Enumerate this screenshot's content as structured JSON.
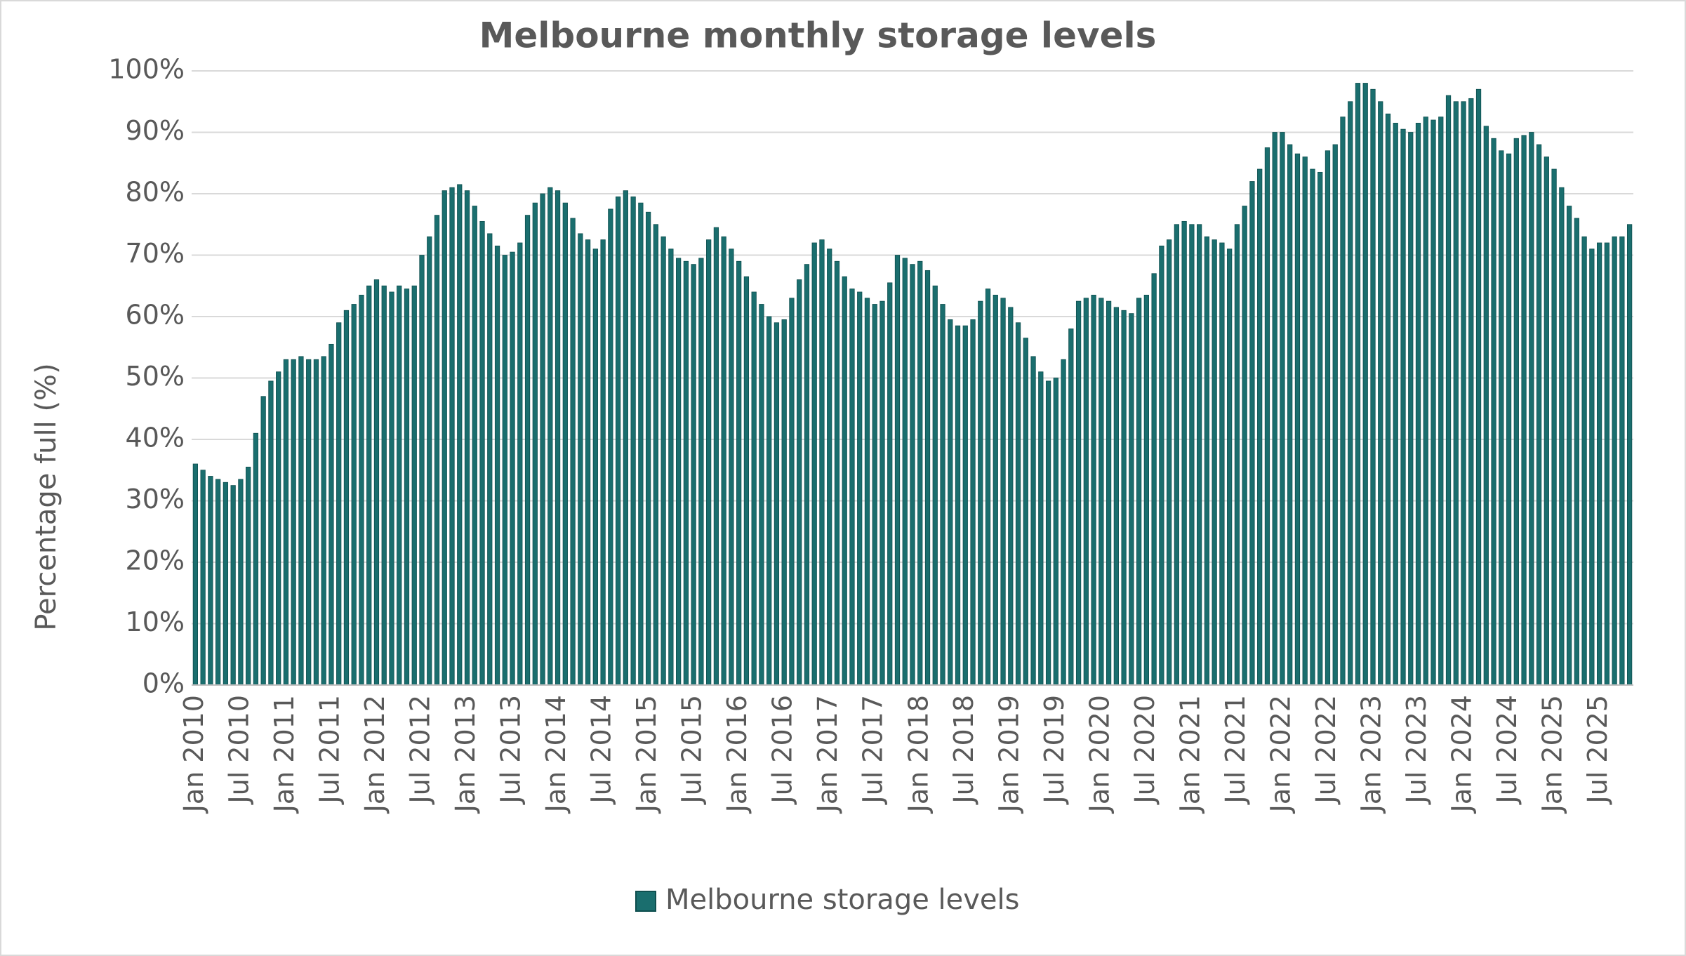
{
  "chart_data": {
    "type": "bar",
    "title": "Melbourne monthly storage levels",
    "y_label": "Percentage full (%)",
    "categories": [
      "Jan 2010",
      null,
      null,
      null,
      null,
      null,
      "Jul 2010",
      null,
      null,
      null,
      null,
      null,
      "Jan 2011",
      null,
      null,
      null,
      null,
      null,
      "Jul 2011",
      null,
      null,
      null,
      null,
      null,
      "Jan 2012",
      null,
      null,
      null,
      null,
      null,
      "Jul 2012",
      null,
      null,
      null,
      null,
      null,
      "Jan 2013",
      null,
      null,
      null,
      null,
      null,
      "Jul 2013",
      null,
      null,
      null,
      null,
      null,
      "Jan 2014",
      null,
      null,
      null,
      null,
      null,
      "Jul 2014",
      null,
      null,
      null,
      null,
      null,
      "Jan 2015",
      null,
      null,
      null,
      null,
      null,
      "Jul 2015",
      null,
      null,
      null,
      null,
      null,
      "Jan 2016",
      null,
      null,
      null,
      null,
      null,
      "Jul 2016",
      null,
      null,
      null,
      null,
      null,
      "Jan 2017",
      null,
      null,
      null,
      null,
      null,
      "Jul 2017",
      null,
      null,
      null,
      null,
      null,
      "Jan 2018",
      null,
      null,
      null,
      null,
      null,
      "Jul 2018",
      null,
      null,
      null,
      null,
      null,
      "Jan 2019",
      null,
      null,
      null,
      null,
      null,
      "Jul 2019",
      null,
      null,
      null,
      null,
      null,
      "Jan 2020",
      null,
      null,
      null,
      null,
      null,
      "Jul 2020",
      null,
      null,
      null,
      null,
      null,
      "Jan 2021",
      null,
      null,
      null,
      null,
      null,
      "Jul 2021",
      null,
      null,
      null,
      null,
      null,
      "Jan 2022",
      null,
      null,
      null,
      null,
      null,
      "Jul 2022",
      null,
      null,
      null,
      null,
      null,
      "Jan 2023",
      null,
      null,
      null,
      null,
      null,
      "Jul 2023",
      null,
      null,
      null,
      null,
      null,
      "Jan 2024",
      null,
      null,
      null,
      null,
      null,
      "Jul 2024",
      null,
      null,
      null,
      null,
      null,
      "Jan 2025",
      null,
      null,
      null,
      null,
      null,
      "Jul 2025",
      null,
      null,
      null,
      null
    ],
    "series": [
      {
        "name": "Melbourne storage levels",
        "color": "#1a6e6e",
        "values": [
          36,
          35,
          34,
          33.5,
          33,
          32.5,
          33.5,
          35.5,
          41,
          47,
          49.5,
          51,
          53,
          53,
          53.5,
          53,
          53,
          53.5,
          55.5,
          59,
          61,
          62,
          63.5,
          65,
          66,
          65,
          64,
          65,
          64.5,
          65,
          70,
          73,
          76.5,
          80.5,
          81,
          81.5,
          80.5,
          78,
          75.5,
          73.5,
          71.5,
          70,
          70.5,
          72,
          76.5,
          78.5,
          80,
          81,
          80.5,
          78.5,
          76,
          73.5,
          72.5,
          71,
          72.5,
          77.5,
          79.5,
          80.5,
          79.5,
          78.5,
          77,
          75,
          73,
          71,
          69.5,
          69,
          68.5,
          69.5,
          72.5,
          74.5,
          73,
          71,
          69,
          66.5,
          64,
          62,
          60,
          59,
          59.5,
          63,
          66,
          68.5,
          72,
          72.5,
          71,
          69,
          66.5,
          64.5,
          64,
          63,
          62,
          62.5,
          65.5,
          70,
          69.5,
          68.5,
          69,
          67.5,
          65,
          62,
          59.5,
          58.5,
          58.5,
          59.5,
          62.5,
          64.5,
          63.5,
          63,
          61.5,
          59,
          56.5,
          53.5,
          51,
          49.5,
          50,
          53,
          58,
          62.5,
          63,
          63.5,
          63,
          62.5,
          61.5,
          61,
          60.5,
          63,
          63.5,
          67,
          71.5,
          72.5,
          75,
          75.5,
          75,
          75,
          73,
          72.5,
          72,
          71,
          75,
          78,
          82,
          84,
          87.5,
          90,
          90,
          88,
          86.5,
          86,
          84,
          83.5,
          87,
          88,
          92.5,
          95,
          98,
          98,
          97,
          95,
          93,
          91.5,
          90.5,
          90,
          91.5,
          92.5,
          92,
          92.5,
          96,
          95,
          95,
          95.5,
          97,
          91,
          89,
          87,
          86.5,
          89,
          89.5,
          90,
          88,
          86,
          84,
          81,
          78,
          76,
          73,
          71,
          72,
          72,
          73,
          73,
          75
        ]
      }
    ],
    "ylim": [
      0,
      100
    ],
    "yticks": [
      {
        "value": 0,
        "label": "0%"
      },
      {
        "value": 10,
        "label": "10%"
      },
      {
        "value": 20,
        "label": "20%"
      },
      {
        "value": 30,
        "label": "30%"
      },
      {
        "value": 40,
        "label": "40%"
      },
      {
        "value": 50,
        "label": "50%"
      },
      {
        "value": 60,
        "label": "60%"
      },
      {
        "value": 70,
        "label": "70%"
      },
      {
        "value": 80,
        "label": "80%"
      },
      {
        "value": 90,
        "label": "90%"
      },
      {
        "value": 100,
        "label": "100%"
      }
    ],
    "grid": true,
    "legend": "bottom"
  }
}
